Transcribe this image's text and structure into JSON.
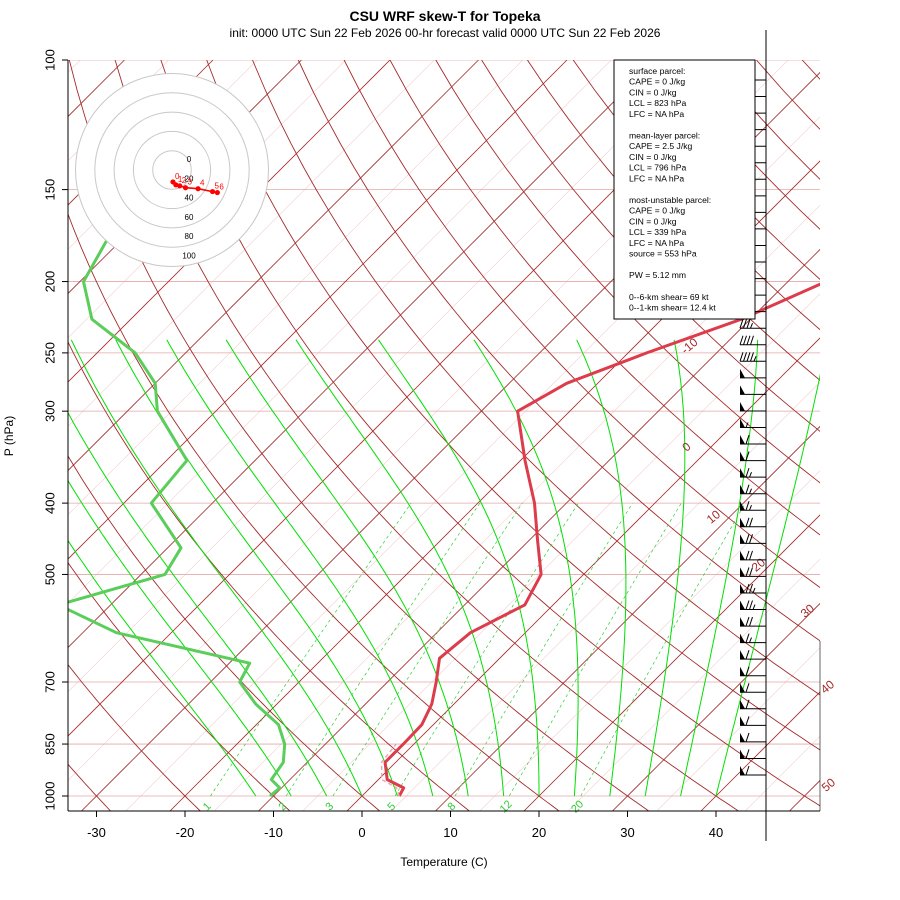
{
  "title": "CSU WRF skew-T for Topeka",
  "subtitle": "init: 0000 UTC Sun 22 Feb 2026     00-hr forecast valid 0000 UTC Sun 22 Feb 2026",
  "chart_data": {
    "type": "skew-t",
    "xlabel": "Temperature (C)",
    "ylabel": "P (hPa)",
    "xlim": [
      -33,
      51
    ],
    "pressure_ticks": [
      100,
      150,
      200,
      250,
      300,
      400,
      500,
      700,
      850,
      1000
    ],
    "temperature_ticks": [
      -30,
      -20,
      -10,
      0,
      10,
      20,
      30,
      40
    ],
    "isotherm_labels": [
      "-10",
      "0",
      "10",
      "20",
      "30",
      "40",
      "50"
    ],
    "mixing_ratio_labels": [
      "1",
      "2",
      "3",
      "5",
      "8",
      "12",
      "20"
    ],
    "temperature_profile": [
      {
        "p": 1000,
        "t": 4.2
      },
      {
        "p": 975,
        "t": 3.8
      },
      {
        "p": 950,
        "t": 1.0
      },
      {
        "p": 900,
        "t": -1.2
      },
      {
        "p": 850,
        "t": -1.2
      },
      {
        "p": 800,
        "t": -1.3
      },
      {
        "p": 750,
        "t": -2.5
      },
      {
        "p": 700,
        "t": -4.5
      },
      {
        "p": 650,
        "t": -6.8
      },
      {
        "p": 600,
        "t": -6.2
      },
      {
        "p": 550,
        "t": -3.2
      },
      {
        "p": 500,
        "t": -4.8
      },
      {
        "p": 450,
        "t": -9.0
      },
      {
        "p": 400,
        "t": -13.6
      },
      {
        "p": 350,
        "t": -19.5
      },
      {
        "p": 300,
        "t": -25.9
      },
      {
        "p": 275,
        "t": -23.5
      },
      {
        "p": 250,
        "t": -17.9
      },
      {
        "p": 225,
        "t": -11.0
      },
      {
        "p": 200,
        "t": -5.7
      },
      {
        "p": 175,
        "t": -1.4
      },
      {
        "p": 150,
        "t": 3.6
      },
      {
        "p": 125,
        "t": 8.6
      },
      {
        "p": 100,
        "t": 13.6
      }
    ],
    "dewpoint_profile": [
      {
        "p": 1000,
        "t": -10.4
      },
      {
        "p": 975,
        "t": -10.2
      },
      {
        "p": 950,
        "t": -12.1
      },
      {
        "p": 900,
        "t": -12.7
      },
      {
        "p": 850,
        "t": -14.6
      },
      {
        "p": 800,
        "t": -17.5
      },
      {
        "p": 750,
        "t": -22.4
      },
      {
        "p": 700,
        "t": -26.7
      },
      {
        "p": 660,
        "t": -27.7
      },
      {
        "p": 600,
        "t": -46.2
      },
      {
        "p": 550,
        "t": -55.9
      },
      {
        "p": 500,
        "t": -47.3
      },
      {
        "p": 460,
        "t": -48.5
      },
      {
        "p": 400,
        "t": -56.9
      },
      {
        "p": 350,
        "t": -57.7
      },
      {
        "p": 300,
        "t": -66.6
      },
      {
        "p": 275,
        "t": -70.0
      },
      {
        "p": 250,
        "t": -75.7
      },
      {
        "p": 225,
        "t": -84.4
      },
      {
        "p": 200,
        "t": -89.6
      },
      {
        "p": 175,
        "t": -91.7
      },
      {
        "p": 160,
        "t": -92.7
      }
    ],
    "wind_barbs_speed_kt": [
      10,
      10,
      15,
      15,
      15,
      15,
      20,
      25,
      25,
      25,
      25,
      30,
      30,
      35,
      35,
      35,
      40,
      45,
      50,
      50,
      50,
      55,
      60,
      60,
      65,
      65,
      65,
      70,
      70,
      70,
      70,
      75,
      75,
      70,
      65,
      60,
      60,
      60,
      60,
      60,
      60,
      60,
      60
    ],
    "hodograph": {
      "rings_kt": [
        "0",
        "20",
        "40",
        "60",
        "80",
        "100"
      ],
      "points": [
        {
          "label": "0",
          "u": -1,
          "v": -2
        },
        {
          "label": "1",
          "u": -4,
          "v": -5
        },
        {
          "label": "2",
          "u": -8,
          "v": -6
        },
        {
          "label": "3",
          "u": -14,
          "v": -8
        },
        {
          "label": "4",
          "u": -27,
          "v": -9
        },
        {
          "label": "5",
          "u": -42,
          "v": -12
        },
        {
          "label": "6",
          "u": -47,
          "v": -13
        }
      ]
    }
  },
  "info_panel": {
    "lines": [
      "surface parcel:",
      "CAPE = 0 J/kg",
      "CIN = 0 J/kg",
      "LCL = 823 hPa",
      "LFC = NA hPa",
      "mean-layer parcel:",
      "CAPE = 2.5 J/kg",
      "CIN = 0 J/kg",
      "LCL = 796 hPa",
      "LFC = NA hPa",
      "most-unstable parcel:",
      "CAPE = 0 J/kg",
      "CIN = 0 J/kg",
      "LCL = 339 hPa",
      "LFC = NA hPa",
      "source = 553 hPa",
      "PW =  5.12 mm",
      "0--6-km shear= 69 kt",
      "0--1-km shear= 12.4 kt"
    ]
  },
  "colors": {
    "temperature": "#dc3c4b",
    "dewpoint": "#5acd5a",
    "isotherm": "#a52a2a",
    "isobar": "#e6a7a7",
    "mixing_ratio": "#32cd32",
    "moist_adiabat": "#00e000",
    "dry_adiabat": "#a52a2a",
    "hodograph_trace": "#ff0000",
    "ring": "#c8c8c8"
  }
}
